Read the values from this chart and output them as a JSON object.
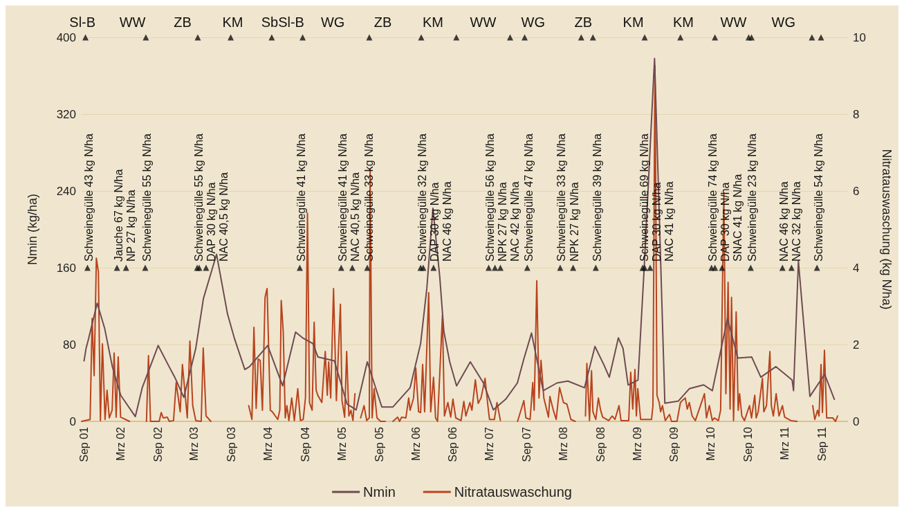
{
  "chart_data": {
    "type": "line",
    "ylabel": "Nmin (kg/ha)",
    "y2label": "Nitratauswaschung (kg N/ha)",
    "xlim": [
      "2001-08-20",
      "2012-01-05"
    ],
    "xticks": [
      {
        "value": "2001-09-01",
        "label": "Sep 01"
      },
      {
        "value": "2002-03-01",
        "label": "Mrz 02"
      },
      {
        "value": "2002-09-01",
        "label": "Sep 02"
      },
      {
        "value": "2003-03-01",
        "label": "Mrz 03"
      },
      {
        "value": "2003-09-01",
        "label": "Sep 03"
      },
      {
        "value": "2004-03-01",
        "label": "Mrz 04"
      },
      {
        "value": "2004-09-01",
        "label": "Sep 04"
      },
      {
        "value": "2005-03-01",
        "label": "Mrz 05"
      },
      {
        "value": "2005-09-01",
        "label": "Sep 05"
      },
      {
        "value": "2006-03-01",
        "label": "Mrz 06"
      },
      {
        "value": "2006-09-01",
        "label": "Sep 06"
      },
      {
        "value": "2007-03-01",
        "label": "Mrz 07"
      },
      {
        "value": "2007-09-01",
        "label": "Sep 07"
      },
      {
        "value": "2008-03-01",
        "label": "Mrz 08"
      },
      {
        "value": "2008-09-01",
        "label": "Sep 08"
      },
      {
        "value": "2009-03-01",
        "label": "Mrz 09"
      },
      {
        "value": "2009-09-01",
        "label": "Sep 09"
      },
      {
        "value": "2010-03-01",
        "label": "Mrz 10"
      },
      {
        "value": "2010-09-01",
        "label": "Sep 10"
      },
      {
        "value": "2011-03-01",
        "label": "Mrz 11"
      },
      {
        "value": "2011-09-01",
        "label": "Sep 11"
      }
    ],
    "ylim": [
      0,
      400
    ],
    "yticks": [
      0,
      80,
      160,
      240,
      320,
      400
    ],
    "y2lim": [
      0,
      10
    ],
    "y2ticks": [
      0,
      2,
      4,
      6,
      8,
      10
    ],
    "grid": "y",
    "legend": "bottom",
    "marker": "none",
    "line_style": "solid",
    "series": [
      {
        "name": "Nmin",
        "color": "#6e4a52",
        "x": [
          "2001-09-01",
          "2001-09-11",
          "2001-09-21",
          "2001-11-05",
          "2001-12-12",
          "2002-01-19",
          "2002-03-02",
          "2002-05-13",
          "2002-06-16",
          "2002-09-03",
          "2002-10-27",
          "2002-11-24",
          "2003-01-08",
          "2003-03-08",
          "2003-04-15",
          "2003-06-19",
          "2003-08-12",
          "2003-09-16",
          "2003-11-06",
          "2003-11-29",
          "2004-02-27",
          "2004-05-11",
          "2004-07-14",
          "2004-08-18",
          "2004-10-08",
          "2004-11-02",
          "2005-01-22",
          "2005-03-26",
          "2005-05-10",
          "2005-07-04",
          "2005-09-14",
          "2005-11-08",
          "2006-02-01",
          "2006-03-25",
          "2006-04-25",
          "2006-05-25",
          "2006-06-28",
          "2006-07-18",
          "2006-08-16",
          "2006-09-19",
          "2006-11-26",
          "2007-01-30",
          "2007-03-20",
          "2007-05-20",
          "2007-07-17",
          "2007-08-18",
          "2007-09-25",
          "2007-11-22",
          "2008-01-29",
          "2008-03-23",
          "2008-06-13",
          "2008-08-04",
          "2008-09-17",
          "2008-10-14",
          "2008-11-28",
          "2008-12-21",
          "2009-01-15",
          "2009-03-05",
          "2009-04-05",
          "2009-05-26",
          "2009-06-26",
          "2009-07-16",
          "2009-09-20",
          "2009-11-14",
          "2010-01-24",
          "2010-03-08",
          "2010-05-22",
          "2010-07-12",
          "2010-09-19",
          "2010-11-03",
          "2011-01-17",
          "2011-04-07",
          "2011-04-14",
          "2011-05-08",
          "2011-07-04",
          "2011-09-15",
          "2011-11-02"
        ],
        "values": [
          63,
          76,
          84,
          123,
          97,
          57,
          27,
          5,
          35,
          79,
          57,
          46,
          25,
          76,
          128,
          174,
          112,
          86,
          54,
          57,
          79,
          37,
          93,
          87,
          81,
          67,
          63,
          18,
          12,
          62,
          15,
          15,
          35,
          81,
          139,
          222,
          150,
          94,
          62,
          37,
          62,
          40,
          12,
          23,
          40,
          65,
          92,
          32,
          40,
          42,
          35,
          78,
          59,
          46,
          87,
          76,
          38,
          43,
          161,
          378,
          161,
          19,
          21,
          34,
          38,
          32,
          107,
          66,
          67,
          46,
          57,
          43,
          32,
          167,
          26,
          49,
          23
        ]
      },
      {
        "name": "Nitratauswaschung",
        "color": "#b8441e",
        "axis": "y2",
        "x": [
          "2001-08-20",
          "2001-10-01",
          "2001-10-11",
          "2001-10-21",
          "2001-11-01",
          "2001-11-11",
          "2001-11-21",
          "2001-12-01",
          "2001-12-14",
          "2001-12-24",
          "2002-01-04",
          "2002-01-18",
          "2002-01-28",
          "2002-02-07",
          "2002-02-17",
          "2002-03-01",
          "2002-04-14",
          "2002-06-01",
          "2002-07-07",
          "2002-07-17",
          "2002-07-27",
          "2002-09-08",
          "2002-09-18",
          "2002-09-28",
          "2002-10-18",
          "2002-10-28",
          "2002-11-18",
          "2002-12-01",
          "2002-12-21",
          "2003-01-01",
          "2003-01-25",
          "2003-02-07",
          "2003-02-21",
          "2003-03-08",
          "2003-04-04",
          "2003-04-14",
          "2003-04-28",
          "2003-05-22",
          "2003-09-01",
          "2003-11-25",
          "2003-12-11",
          "2003-12-21",
          "2004-01-01",
          "2004-01-11",
          "2004-01-21",
          "2004-02-01",
          "2004-02-14",
          "2004-02-24",
          "2004-03-11",
          "2004-03-21",
          "2004-04-17",
          "2004-04-27",
          "2004-05-04",
          "2004-05-14",
          "2004-05-24",
          "2004-06-01",
          "2004-06-11",
          "2004-06-25",
          "2004-07-08",
          "2004-07-25",
          "2004-08-07",
          "2004-08-21",
          "2004-09-01",
          "2004-09-11",
          "2004-09-21",
          "2004-10-04",
          "2004-10-14",
          "2004-10-24",
          "2004-11-01",
          "2004-11-21",
          "2004-12-08",
          "2004-12-18",
          "2004-12-25",
          "2005-01-04",
          "2005-01-18",
          "2005-02-01",
          "2005-02-21",
          "2005-03-01",
          "2005-03-14",
          "2005-03-24",
          "2005-04-04",
          "2005-04-14",
          "2005-04-24",
          "2005-05-04",
          "2005-05-15",
          "2005-06-01",
          "2005-06-18",
          "2005-07-01",
          "2005-07-14",
          "2005-07-18",
          "2005-07-28",
          "2005-08-07",
          "2005-08-21",
          "2005-09-08",
          "2005-10-01",
          "2005-10-20",
          "2005-11-08",
          "2005-12-01",
          "2005-12-11",
          "2005-12-21",
          "2006-01-11",
          "2006-01-25",
          "2006-02-01",
          "2006-02-18",
          "2006-03-01",
          "2006-03-15",
          "2006-03-25",
          "2006-04-04",
          "2006-04-14",
          "2006-05-04",
          "2006-05-14",
          "2006-05-28",
          "2006-06-07",
          "2006-06-17",
          "2006-07-11",
          "2006-07-21",
          "2006-08-07",
          "2006-08-21",
          "2006-09-01",
          "2006-09-15",
          "2006-10-11",
          "2006-10-25",
          "2006-11-04",
          "2006-11-24",
          "2006-12-04",
          "2006-12-21",
          "2007-01-04",
          "2007-01-18",
          "2007-02-07",
          "2007-02-21",
          "2007-03-01",
          "2007-03-25",
          "2007-04-07",
          "2007-04-24",
          "2007-06-01",
          "2007-07-18",
          "2007-08-18",
          "2007-08-28",
          "2007-09-18",
          "2007-10-01",
          "2007-10-08",
          "2007-10-21",
          "2007-11-01",
          "2007-11-11",
          "2007-11-25",
          "2007-12-18",
          "2007-12-25",
          "2008-01-11",
          "2008-01-25",
          "2008-02-11",
          "2008-03-01",
          "2008-03-18",
          "2008-04-07",
          "2008-04-28",
          "2008-06-01",
          "2008-06-18",
          "2008-06-25",
          "2008-07-08",
          "2008-07-18",
          "2008-07-25",
          "2008-08-08",
          "2008-08-21",
          "2008-09-01",
          "2008-09-11",
          "2008-10-11",
          "2008-10-28",
          "2008-11-11",
          "2008-12-01",
          "2008-12-11",
          "2009-01-18",
          "2009-01-28",
          "2009-02-07",
          "2009-02-18",
          "2009-02-25",
          "2009-03-04",
          "2009-03-18",
          "2009-05-11",
          "2009-05-18",
          "2009-05-28",
          "2009-06-07",
          "2009-06-18",
          "2009-06-25",
          "2009-07-04",
          "2009-07-18",
          "2009-08-08",
          "2009-08-18",
          "2009-09-14",
          "2009-10-01",
          "2009-10-14",
          "2009-10-25",
          "2009-11-04",
          "2009-11-14",
          "2009-11-28",
          "2009-12-14",
          "2010-01-28",
          "2010-02-07",
          "2010-02-21",
          "2010-03-08",
          "2010-03-18",
          "2010-04-07",
          "2010-04-18",
          "2010-05-04",
          "2010-05-14",
          "2010-05-25",
          "2010-06-04",
          "2010-06-11",
          "2010-06-21",
          "2010-07-04",
          "2010-07-14",
          "2010-07-21",
          "2010-08-01",
          "2010-08-14",
          "2010-09-08",
          "2010-09-18",
          "2010-10-04",
          "2010-10-11",
          "2010-10-21",
          "2010-11-11",
          "2010-11-18",
          "2010-12-01",
          "2010-12-18",
          "2010-12-25",
          "2011-01-04",
          "2011-01-18",
          "2011-02-01",
          "2011-02-18",
          "2011-03-01",
          "2011-04-01",
          "2011-05-01",
          "2011-06-01",
          "2011-07-18",
          "2011-07-28",
          "2011-08-11",
          "2011-08-18",
          "2011-08-28",
          "2011-09-04",
          "2011-09-14",
          "2011-09-25",
          "2011-10-25",
          "2011-11-08",
          "2011-11-18"
        ],
        "values": [
          0,
          0.05,
          2.68,
          1.19,
          4.25,
          3.89,
          0.02,
          2.02,
          0.05,
          0.81,
          0.09,
          0.29,
          1.78,
          0.11,
          1.68,
          0.11,
          0,
          null,
          0,
          1.71,
          0,
          0,
          0.23,
          0.09,
          0.11,
          0,
          0.02,
          1.01,
          0.25,
          1.48,
          0.09,
          2.09,
          0.41,
          0.02,
          0,
          1.91,
          0.14,
          0,
          null,
          0.41,
          0.05,
          2.45,
          0.34,
          1.62,
          1.59,
          0.29,
          3.23,
          3.46,
          0.29,
          0.25,
          0.05,
          0.29,
          3.15,
          2.34,
          0.09,
          0.41,
          0.02,
          0.61,
          0.02,
          0.85,
          0.02,
          0.05,
          0.61,
          5.42,
          0.49,
          0.29,
          2.58,
          0.81,
          0.68,
          0.49,
          1.82,
          0.68,
          1.55,
          0.61,
          3.46,
          0.54,
          3.05,
          0.54,
          0.11,
          1.82,
          0.14,
          0.29,
          0.02,
          0.72,
          null,
          0.09,
          0.41,
          0.02,
          0.09,
          6.56,
          0.09,
          0.85,
          0.09,
          0,
          0,
          null,
          0,
          0.11,
          0,
          0.11,
          0.09,
          0.61,
          0.29,
          0.61,
          1.39,
          0.25,
          0.23,
          1.48,
          0.25,
          3.35,
          0.25,
          1.15,
          0.09,
          0,
          2.76,
          0.14,
          0.49,
          0.11,
          0.58,
          0.09,
          0.02,
          0.52,
          0.14,
          0.49,
          0.29,
          1.08,
          0.47,
          0.61,
          1.12,
          0.41,
          0.05,
          0.05,
          0.49,
          0.02,
          null,
          0,
          0.54,
          0.09,
          0.05,
          1.01,
          0.29,
          3.66,
          0.61,
          1.59,
          0.61,
          0.11,
          0.65,
          0.29,
          0.05,
          0.88,
          0.49,
          0.45,
          0.05,
          0,
          null,
          0.14,
          1.51,
          0.02,
          1.32,
          0.25,
          0.05,
          0.61,
          0.29,
          0.11,
          0.02,
          0.14,
          0.05,
          0.41,
          0.02,
          0.02,
          1.28,
          0.32,
          1.35,
          0.14,
          0.85,
          0.05,
          0.05,
          0.41,
          9.26,
          0.68,
          0.49,
          0.25,
          0.41,
          0.02,
          0.18,
          0,
          0,
          0.49,
          0.56,
          0.61,
          0.32,
          0.49,
          0.14,
          0.02,
          0.72,
          0.09,
          0.41,
          0.02,
          0.09,
          0.02,
          0.29,
          5.95,
          0.72,
          3.62,
          0.32,
          3.23,
          0.02,
          2.85,
          0.29,
          0.72,
          0.14,
          0.02,
          0.41,
          0.09,
          0.68,
          0.09,
          0.25,
          1.12,
          0.25,
          0.41,
          1.82,
          0.41,
          0.14,
          0.72,
          0.14,
          0.41,
          0.11,
          0.02,
          0,
          null,
          0.41,
          0.05,
          0.29,
          0.14,
          1.48,
          0.23,
          1.85,
          0.09,
          0.09,
          0,
          0.14
        ]
      },
      {
        "type": "scatter",
        "color": "#111111",
        "marker": "triangle",
        "x": [
          "2001-09-08",
          "2002-07-04",
          "2003-03-18",
          "2003-08-28",
          "2004-03-18",
          "2004-08-18",
          "2005-07-14",
          "2006-03-28",
          "2006-09-18",
          "2007-06-11",
          "2007-08-22",
          "2008-05-28",
          "2008-07-25",
          "2009-04-07",
          "2009-10-01",
          "2010-03-21",
          "2010-09-04",
          "2010-09-18",
          "2011-07-14",
          "2011-08-28"
        ],
        "values": [
          400,
          400,
          400,
          400,
          400,
          400,
          400,
          400,
          400,
          400,
          400,
          400,
          400,
          400,
          400,
          400,
          400,
          400,
          400,
          400
        ]
      }
    ],
    "annotations": [
      "Sl-B",
      "WW",
      "ZB",
      "KM",
      "SbSl-B",
      "WG",
      "ZB",
      "KM",
      "WW",
      "WG",
      "ZB",
      "KM",
      "KM",
      "WW",
      "WG",
      {
        "text": "Schweinegülle 43 kg N/ha",
        "x": "2001-09-18",
        "y": 160
      },
      {
        "text": "Jauche 67 kg N/ha",
        "x": "2002-02-11",
        "y": 160
      },
      {
        "text": "NP 27 kg N/ha",
        "x": "2002-03-28",
        "y": 160
      },
      {
        "text": "Schweinegülle 55 kg N/ha",
        "x": "2002-07-01",
        "y": 160
      },
      {
        "text": "Schweinegülle 55 kg N/ha",
        "x": "2003-03-15",
        "y": 160
      },
      {
        "text": "DAP 30 kg N/ha",
        "x": "2003-03-25",
        "y": 160
      },
      {
        "text": "NAC 40,5 kg N/ha",
        "x": "2003-04-28",
        "y": 160
      },
      {
        "text": "Schweinegülle 41 kg N/ha",
        "x": "2004-08-04",
        "y": 160
      },
      {
        "text": "Schweinegülle 41 kg N/ha",
        "x": "2005-02-25",
        "y": 160
      },
      {
        "text": "NAC 40,5 kg N/ha",
        "x": "2005-04-21",
        "y": 160
      },
      {
        "text": "Schweinegülle 33 kg N/ha",
        "x": "2005-07-04",
        "y": 160
      },
      {
        "text": "Schweinegülle 32 kg N/ha",
        "x": "2006-03-25",
        "y": 160
      },
      {
        "text": "DAP 30 kg N/ha",
        "x": "2006-04-07",
        "y": 160
      },
      {
        "text": "NAC 46 kg N/ha",
        "x": "2006-05-28",
        "y": 160
      },
      {
        "text": "Schweinegülle 56 kg N/ha",
        "x": "2007-02-25",
        "y": 160
      },
      {
        "text": "NPK 27 kg N/ha",
        "x": "2007-03-28",
        "y": 160
      },
      {
        "text": "NAC 42 kg N/ha",
        "x": "2007-04-24",
        "y": 160
      },
      {
        "text": "Schweinegülle 47 kg N/ha",
        "x": "2007-09-04",
        "y": 160
      },
      {
        "text": "Schweinegülle 33 kg N/ha",
        "x": "2008-02-14",
        "y": 160
      },
      {
        "text": "NPK 27 kg N/ha",
        "x": "2008-04-18",
        "y": 160
      },
      {
        "text": "Schweinegülle 39 kg N/ha",
        "x": "2008-08-08",
        "y": 160
      },
      {
        "text": "Schweinegülle 69 kg N/ha",
        "x": "2009-03-28",
        "y": 160
      },
      {
        "text": "DAP 30 kg N/ha",
        "x": "2009-04-07",
        "y": 160
      },
      {
        "text": "NAC 41 kg N/ha",
        "x": "2009-05-04",
        "y": 160
      },
      {
        "text": "Schweinegülle 74 kg N/ha",
        "x": "2010-03-04",
        "y": 160
      },
      {
        "text": "DAP 30 kg N/ha",
        "x": "2010-03-21",
        "y": 160
      },
      {
        "text": "SNAC 41 kg N/ha",
        "x": "2010-04-25",
        "y": 160
      },
      {
        "text": "Schweinegülle 23 kg N/ha",
        "x": "2010-09-14",
        "y": 160
      },
      {
        "text": "NAC 46 kg N/ha",
        "x": "2011-02-18",
        "y": 160
      },
      {
        "text": "NAC 32 kg N/ha",
        "x": "2011-04-04",
        "y": 160
      },
      {
        "text": "Schweinegülle 54 kg N/ha",
        "x": "2011-08-08",
        "y": 160
      }
    ]
  }
}
